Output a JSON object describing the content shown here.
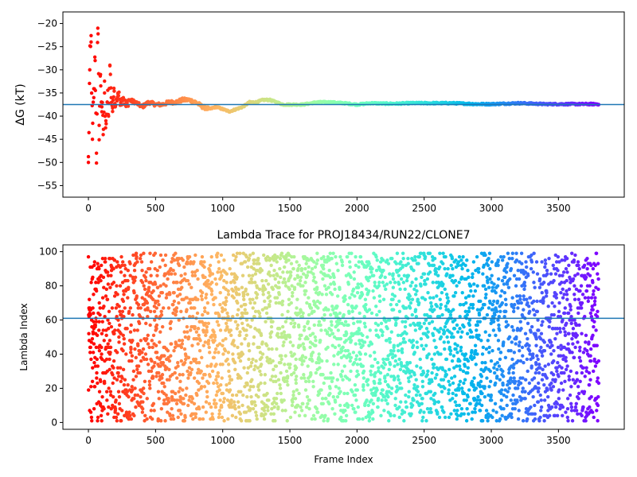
{
  "chart_data": [
    {
      "type": "scatter",
      "title": "",
      "xlabel": "",
      "ylabel": "ΔG (kT)",
      "xlim": [
        -190,
        3990
      ],
      "ylim": [
        -57.5,
        -17.5
      ],
      "xticks": [
        0,
        500,
        1000,
        1500,
        2000,
        2500,
        3000,
        3500
      ],
      "yticks": [
        -55,
        -50,
        -45,
        -40,
        -35,
        -30,
        -25,
        -20
      ],
      "xtick_labels": [
        "0",
        "500",
        "1000",
        "1500",
        "2000",
        "2500",
        "3000",
        "3500"
      ],
      "ytick_labels": [
        "−55",
        "−50",
        "−45",
        "−40",
        "−35",
        "−30",
        "−25",
        "−20"
      ],
      "hline": -37.5,
      "hline_color": "#1f77b4",
      "colormap": "rainbow",
      "color_by": "frame",
      "series": [
        {
          "x": [
            0,
            10,
            20,
            30,
            40,
            50,
            60,
            70,
            80,
            90,
            100,
            110,
            120,
            130,
            140,
            150,
            160,
            170,
            180,
            190,
            200,
            220,
            240,
            260,
            280,
            300,
            350,
            400,
            450,
            500,
            550,
            600,
            650,
            700,
            750,
            800,
            850,
            900,
            950,
            1000,
            1050,
            1100,
            1150,
            1200,
            1250,
            1300,
            1350,
            1400,
            1450,
            1500,
            1600,
            1700,
            1800,
            1900,
            2000,
            2100,
            2200,
            2300,
            2400,
            2500,
            2600,
            2700,
            2800,
            2900,
            3000,
            3100,
            3200,
            3300,
            3400,
            3500,
            3600,
            3700,
            3800
          ],
          "y": [
            -50,
            -30,
            -24,
            -45,
            -36,
            -28,
            -48,
            -21,
            -42,
            -31,
            -38,
            -44,
            -35,
            -41,
            -37,
            -40,
            -29,
            -36,
            -39,
            -34,
            -38,
            -35,
            -37,
            -36,
            -38,
            -36.5,
            -37,
            -38,
            -37,
            -37.5,
            -37.5,
            -37,
            -37,
            -36.5,
            -36.5,
            -37,
            -38,
            -38.5,
            -38,
            -38.5,
            -39,
            -38.5,
            -38,
            -37,
            -37,
            -36.5,
            -36.5,
            -37,
            -37.5,
            -37.5,
            -37.5,
            -37,
            -37,
            -37.2,
            -37.5,
            -37.2,
            -37.3,
            -37.3,
            -37.2,
            -37.2,
            -37.2,
            -37.2,
            -37.3,
            -37.4,
            -37.4,
            -37.3,
            -37.2,
            -37.3,
            -37.4,
            -37.4,
            -37.4,
            -37.4,
            -37.4
          ]
        }
      ]
    },
    {
      "type": "scatter",
      "title": "Lambda Trace for PROJ18434/RUN22/CLONE7",
      "xlabel": "Frame Index",
      "ylabel": "Lambda Index",
      "xlim": [
        -190,
        3990
      ],
      "ylim": [
        -4,
        104
      ],
      "xticks": [
        0,
        500,
        1000,
        1500,
        2000,
        2500,
        3000,
        3500
      ],
      "yticks": [
        0,
        20,
        40,
        60,
        80,
        100
      ],
      "xtick_labels": [
        "0",
        "500",
        "1000",
        "1500",
        "2000",
        "2500",
        "3000",
        "3500"
      ],
      "ytick_labels": [
        "0",
        "20",
        "40",
        "60",
        "80",
        "100"
      ],
      "hline": 61,
      "hline_color": "#1f77b4",
      "colormap": "rainbow",
      "color_by": "frame",
      "frame_range": [
        0,
        3800
      ],
      "lambda_range": [
        1,
        99
      ],
      "point_count": 3800
    }
  ]
}
